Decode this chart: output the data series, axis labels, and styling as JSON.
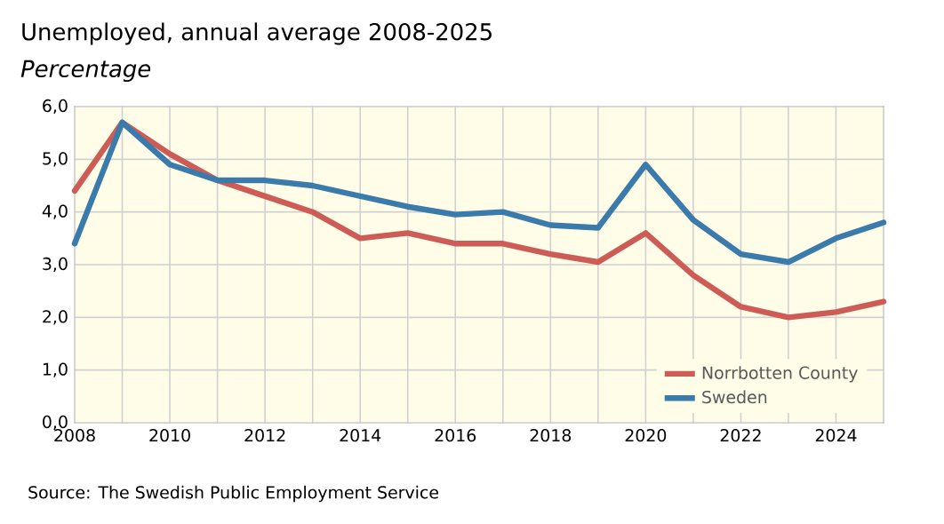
{
  "chart_data": {
    "type": "line",
    "title": "Unemployed, annual average 2008-2025",
    "subtitle": "Percentage",
    "x": [
      2008,
      2009,
      2010,
      2011,
      2012,
      2013,
      2014,
      2015,
      2016,
      2017,
      2018,
      2019,
      2020,
      2021,
      2022,
      2023,
      2024,
      2025
    ],
    "series": [
      {
        "name": "Norrbotten County",
        "color": "#cd5c57",
        "values": [
          4.4,
          5.7,
          5.1,
          4.6,
          4.3,
          4.0,
          3.5,
          3.6,
          3.4,
          3.4,
          3.2,
          3.05,
          3.6,
          2.8,
          2.2,
          2.0,
          2.1,
          2.3
        ]
      },
      {
        "name": "Sweden",
        "color": "#3a7bab",
        "values": [
          3.4,
          5.7,
          4.9,
          4.6,
          4.6,
          4.5,
          4.3,
          4.1,
          3.95,
          4.0,
          3.75,
          3.7,
          4.9,
          3.85,
          3.2,
          3.05,
          3.5,
          3.8
        ]
      }
    ],
    "xlim": [
      2008,
      2025
    ],
    "xticks": [
      2008,
      {
        "value": 2009,
        "label": null
      },
      2010,
      {
        "value": 2011,
        "label": null
      },
      2012,
      {
        "value": 2013,
        "label": null
      },
      2014,
      {
        "value": 2015,
        "label": null
      },
      2016,
      {
        "value": 2017,
        "label": null
      },
      2018,
      {
        "value": 2019,
        "label": null
      },
      2020,
      {
        "value": 2021,
        "label": null
      },
      2022,
      {
        "value": 2023,
        "label": null
      },
      2024,
      {
        "value": 2025,
        "label": null
      }
    ],
    "ylim": [
      0,
      6
    ],
    "yticks": [
      {
        "value": 0,
        "label": "0,0"
      },
      {
        "value": 1,
        "label": "1,0"
      },
      {
        "value": 2,
        "label": "2,0"
      },
      {
        "value": 3,
        "label": "3,0"
      },
      {
        "value": 4,
        "label": "4,0"
      },
      {
        "value": 5,
        "label": "5,0"
      },
      {
        "value": 6,
        "label": "6,0"
      }
    ],
    "grid": true,
    "legend": "bottom right",
    "marker": "none",
    "line_style": "solid",
    "annotations": [
      "Source: The Swedish Public Employment Service"
    ]
  }
}
